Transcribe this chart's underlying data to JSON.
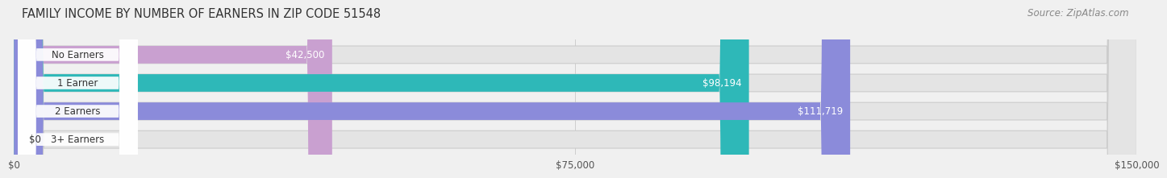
{
  "title": "FAMILY INCOME BY NUMBER OF EARNERS IN ZIP CODE 51548",
  "source": "Source: ZipAtlas.com",
  "categories": [
    "No Earners",
    "1 Earner",
    "2 Earners",
    "3+ Earners"
  ],
  "values": [
    42500,
    98194,
    111719,
    0
  ],
  "bar_colors": [
    "#c9a0d0",
    "#2eb8b8",
    "#8b8bda",
    "#f4a0b8"
  ],
  "value_labels": [
    "$42,500",
    "$98,194",
    "$111,719",
    "$0"
  ],
  "xlim": [
    0,
    150000
  ],
  "xticks": [
    0,
    75000,
    150000
  ],
  "xtick_labels": [
    "$0",
    "$75,000",
    "$150,000"
  ],
  "background_color": "#f0f0f0",
  "bar_background_color": "#e4e4e4",
  "title_fontsize": 10.5,
  "source_fontsize": 8.5,
  "label_fontsize": 8.5,
  "value_fontsize": 8.5,
  "small_bar_threshold": 15000
}
